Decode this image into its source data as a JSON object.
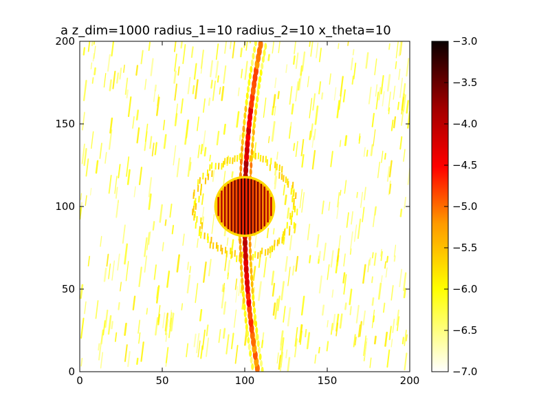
{
  "chart_data": {
    "type": "heatmap",
    "title": "a z_dim=1000 radius_1=10 radius_2=10 x_theta=10",
    "xlabel": "",
    "ylabel": "",
    "xlim": [
      0,
      200
    ],
    "ylim": [
      0,
      200
    ],
    "xticks": [
      "0",
      "50",
      "100",
      "150",
      "200"
    ],
    "yticks": [
      "0",
      "50",
      "100",
      "150",
      "200"
    ],
    "colorbar": {
      "cmap": "hot_r",
      "range": [
        -7.0,
        -3.0
      ],
      "ticks": [
        "−3.0",
        "−3.5",
        "−4.0",
        "−4.5",
        "−5.0",
        "−5.5",
        "−6.0",
        "−6.5",
        "−7.0"
      ]
    },
    "features": {
      "central_disk": {
        "center": [
          100,
          100
        ],
        "radius": 17,
        "value": -3.2
      },
      "ring": {
        "center": [
          100,
          100
        ],
        "radius": 30,
        "value": -5.8
      },
      "vertical_streak": {
        "x_at_bottom": 108,
        "x_at_top": 110,
        "x_at_center": 100,
        "value": -4.5
      },
      "background_speckle": {
        "value_range": [
          -7.0,
          -5.8
        ]
      }
    },
    "grid": false
  }
}
